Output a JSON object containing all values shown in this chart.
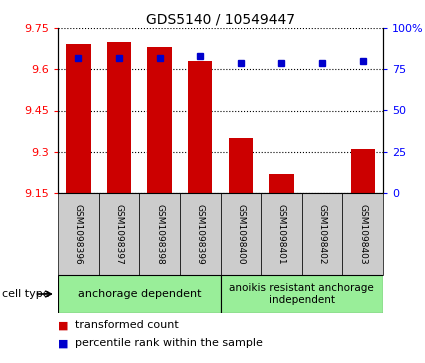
{
  "title": "GDS5140 / 10549447",
  "samples": [
    "GSM1098396",
    "GSM1098397",
    "GSM1098398",
    "GSM1098399",
    "GSM1098400",
    "GSM1098401",
    "GSM1098402",
    "GSM1098403"
  ],
  "bar_values": [
    9.69,
    9.7,
    9.68,
    9.63,
    9.35,
    9.22,
    9.151,
    9.31
  ],
  "percentile_values": [
    82,
    82,
    82,
    83,
    79,
    79,
    79,
    80
  ],
  "bar_bottom": 9.15,
  "ylim_left": [
    9.15,
    9.75
  ],
  "ylim_right": [
    0,
    100
  ],
  "yticks_left": [
    9.15,
    9.3,
    9.45,
    9.6,
    9.75
  ],
  "yticks_right": [
    0,
    25,
    50,
    75,
    100
  ],
  "ytick_labels_right": [
    "0",
    "25",
    "50",
    "75",
    "100%"
  ],
  "bar_color": "#cc0000",
  "percentile_color": "#0000cc",
  "group1_label": "anchorage dependent",
  "group2_label": "anoikis resistant anchorage\nindependent",
  "group1_indices": [
    0,
    1,
    2,
    3
  ],
  "group2_indices": [
    4,
    5,
    6,
    7
  ],
  "group_bg_color": "#99ee99",
  "sample_bg_color": "#cccccc",
  "cell_type_label": "cell type",
  "legend_bar_label": "transformed count",
  "legend_pct_label": "percentile rank within the sample",
  "bar_width": 0.6,
  "figsize": [
    4.25,
    3.63
  ],
  "dpi": 100
}
